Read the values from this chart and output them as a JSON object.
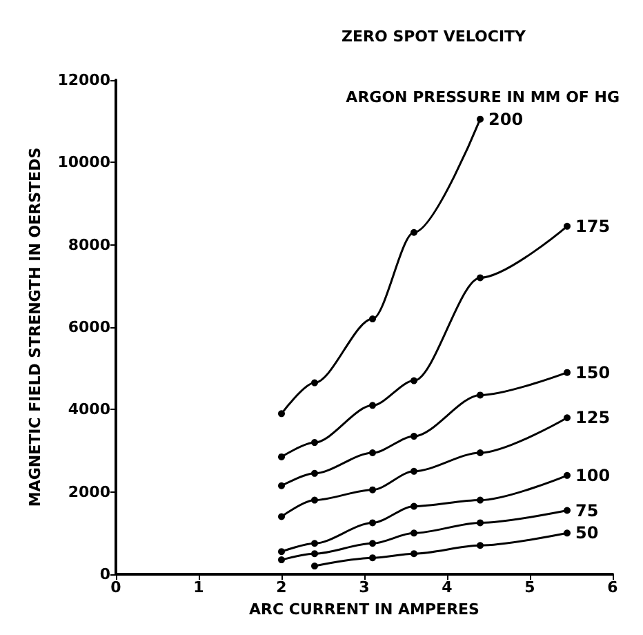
{
  "chart_data": {
    "type": "line",
    "title": "ZERO SPOT VELOCITY",
    "legend_title": "ARGON PRESSURE IN MM OF HG",
    "xlabel": "ARC CURRENT IN AMPERES",
    "ylabel": "MAGNETIC FIELD STRENGTH IN OERSTEDS",
    "xlim": [
      0,
      6
    ],
    "xticks": [
      0,
      1,
      2,
      3,
      4,
      5,
      6
    ],
    "ylim": [
      0,
      12000
    ],
    "yticks": [
      0,
      2000,
      4000,
      6000,
      8000,
      10000,
      12000
    ],
    "grid": false,
    "legend": false,
    "marker": "circle",
    "line_style": "solid",
    "series": [
      {
        "name": "200",
        "color": "#000000",
        "x": [
          2,
          2.4,
          3.1,
          3.6,
          4.4
        ],
        "values": [
          3900,
          4650,
          6200,
          8300,
          11050
        ]
      },
      {
        "name": "175",
        "color": "#000000",
        "x": [
          2,
          2.4,
          3.1,
          3.6,
          4.4,
          5.45
        ],
        "values": [
          2850,
          3200,
          4100,
          4700,
          7200,
          8450
        ]
      },
      {
        "name": "150",
        "color": "#000000",
        "x": [
          2,
          2.4,
          3.1,
          3.6,
          4.4,
          5.45
        ],
        "values": [
          2150,
          2450,
          2950,
          3350,
          4350,
          4900
        ]
      },
      {
        "name": "125",
        "color": "#000000",
        "x": [
          2,
          2.4,
          3.1,
          3.6,
          4.4,
          5.45
        ],
        "values": [
          1400,
          1800,
          2050,
          2500,
          2950,
          3800
        ]
      },
      {
        "name": "100",
        "color": "#000000",
        "x": [
          2,
          2.4,
          3.1,
          3.6,
          4.4,
          5.45
        ],
        "values": [
          550,
          750,
          1250,
          1650,
          1800,
          2400
        ]
      },
      {
        "name": "75",
        "color": "#000000",
        "x": [
          2,
          2.4,
          3.1,
          3.6,
          4.4,
          5.45
        ],
        "values": [
          350,
          500,
          750,
          1000,
          1250,
          1550
        ]
      },
      {
        "name": "50",
        "color": "#000000",
        "x": [
          2.4,
          3.1,
          3.6,
          4.4,
          5.45
        ],
        "values": [
          200,
          400,
          500,
          700,
          1000
        ]
      }
    ]
  }
}
